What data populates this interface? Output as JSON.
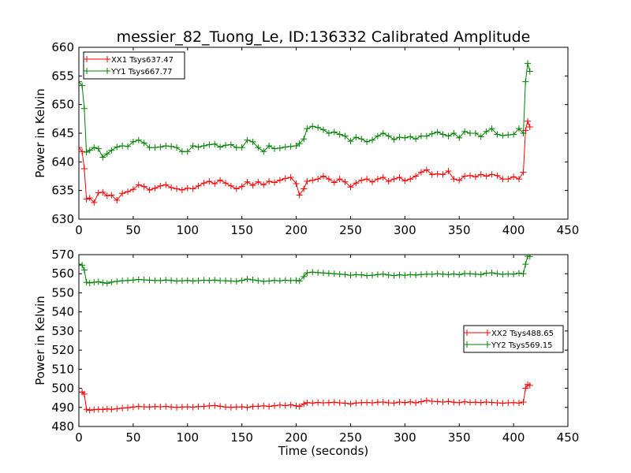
{
  "chart_data": [
    {
      "type": "line",
      "title": "messier_82_Tuong_Le, ID:136332 Calibrated Amplitude",
      "xlabel": "",
      "ylabel": "Power in Kelvin",
      "xlim": [
        0,
        450
      ],
      "ylim": [
        630,
        660
      ],
      "xticks": [
        "0",
        "50",
        "100",
        "150",
        "200",
        "250",
        "300",
        "350",
        "400",
        "450"
      ],
      "yticks": [
        "630",
        "635",
        "640",
        "645",
        "650",
        "655",
        "660"
      ],
      "grid": false,
      "legend_position": "upper-left",
      "marker": "+",
      "series": [
        {
          "name": "XX1 Tsys637.47",
          "color": "#ff0000",
          "x": [
            0,
            3,
            5,
            7,
            10,
            14,
            18,
            22,
            26,
            30,
            35,
            40,
            45,
            50,
            55,
            60,
            65,
            70,
            75,
            80,
            85,
            90,
            95,
            100,
            105,
            110,
            115,
            120,
            125,
            130,
            135,
            140,
            145,
            150,
            155,
            160,
            165,
            170,
            175,
            180,
            185,
            190,
            195,
            200,
            203,
            207,
            210,
            215,
            220,
            225,
            230,
            235,
            240,
            245,
            250,
            255,
            260,
            265,
            270,
            275,
            280,
            285,
            290,
            295,
            300,
            305,
            310,
            315,
            320,
            325,
            330,
            335,
            340,
            345,
            350,
            355,
            360,
            365,
            370,
            375,
            380,
            385,
            390,
            395,
            400,
            405,
            409,
            411,
            413,
            415
          ],
          "values": [
            642.5,
            641.8,
            638.8,
            633.5,
            633.7,
            632.9,
            634.6,
            634.7,
            634.1,
            634.2,
            633.3,
            634.5,
            634.8,
            635.2,
            636.0,
            635.7,
            635.1,
            635.4,
            635.8,
            636.0,
            635.5,
            635.3,
            635.1,
            635.4,
            635.3,
            635.8,
            636.3,
            636.6,
            636.2,
            636.8,
            636.3,
            635.8,
            635.3,
            635.7,
            636.5,
            635.9,
            636.5,
            636.0,
            636.6,
            636.4,
            636.8,
            637.1,
            637.3,
            636.2,
            634.2,
            635.3,
            636.6,
            636.8,
            637.0,
            637.5,
            637.0,
            636.4,
            637.0,
            636.5,
            635.6,
            636.3,
            636.8,
            637.0,
            636.5,
            637.0,
            637.3,
            636.6,
            637.0,
            637.3,
            636.7,
            637.0,
            637.5,
            638.2,
            638.6,
            637.8,
            637.9,
            637.8,
            638.4,
            637.0,
            636.8,
            637.5,
            637.6,
            637.4,
            637.8,
            637.5,
            637.8,
            637.6,
            637.0,
            637.0,
            637.4,
            637.0,
            638.2,
            645.5,
            647.1,
            646.1
          ]
        },
        {
          "name": "YY1 Tsys667.77",
          "color": "#008000",
          "x": [
            0,
            3,
            5,
            7,
            10,
            14,
            18,
            22,
            26,
            30,
            35,
            40,
            45,
            50,
            55,
            60,
            65,
            70,
            75,
            80,
            85,
            90,
            95,
            100,
            105,
            110,
            115,
            120,
            125,
            130,
            135,
            140,
            145,
            150,
            155,
            160,
            165,
            170,
            175,
            180,
            185,
            190,
            195,
            200,
            203,
            207,
            210,
            215,
            220,
            225,
            230,
            235,
            240,
            245,
            250,
            255,
            260,
            265,
            270,
            275,
            280,
            285,
            290,
            295,
            300,
            305,
            310,
            315,
            320,
            325,
            330,
            335,
            340,
            345,
            350,
            355,
            360,
            365,
            370,
            375,
            380,
            385,
            390,
            395,
            400,
            405,
            409,
            411,
            413,
            415
          ],
          "values": [
            654.0,
            653.3,
            649.3,
            641.7,
            642.0,
            642.5,
            642.3,
            640.8,
            641.4,
            642.0,
            642.6,
            642.8,
            642.7,
            643.5,
            643.8,
            643.3,
            642.5,
            642.5,
            642.6,
            642.8,
            642.7,
            642.5,
            641.8,
            641.8,
            642.8,
            642.6,
            642.8,
            643.0,
            643.1,
            642.6,
            642.9,
            643.0,
            642.5,
            642.5,
            643.8,
            643.5,
            642.5,
            641.8,
            642.8,
            642.3,
            642.4,
            642.6,
            642.7,
            642.8,
            643.2,
            644.0,
            645.8,
            646.2,
            646.0,
            645.6,
            645.0,
            645.2,
            644.8,
            644.5,
            643.6,
            644.3,
            644.0,
            643.5,
            643.8,
            644.5,
            645.0,
            644.5,
            643.9,
            644.3,
            644.2,
            644.4,
            644.0,
            644.5,
            644.5,
            644.9,
            645.2,
            644.8,
            644.5,
            645.0,
            644.2,
            645.3,
            645.0,
            645.0,
            644.4,
            645.3,
            645.8,
            644.8,
            644.6,
            644.7,
            644.8,
            645.8,
            645.0,
            654.0,
            657.2,
            655.8
          ]
        }
      ]
    },
    {
      "type": "line",
      "title": "",
      "xlabel": "Time (seconds)",
      "ylabel": "Power in Kelvin",
      "xlim": [
        0,
        450
      ],
      "ylim": [
        480,
        570
      ],
      "xticks": [
        "0",
        "50",
        "100",
        "150",
        "200",
        "250",
        "300",
        "350",
        "400",
        "450"
      ],
      "yticks": [
        "480",
        "490",
        "500",
        "510",
        "520",
        "530",
        "540",
        "550",
        "560",
        "570"
      ],
      "grid": false,
      "legend_position": "center-right",
      "marker": "+",
      "series": [
        {
          "name": "XX2 Tsys488.65",
          "color": "#ff0000",
          "x": [
            0,
            3,
            5,
            7,
            10,
            14,
            18,
            22,
            26,
            30,
            35,
            40,
            45,
            50,
            55,
            60,
            65,
            70,
            75,
            80,
            85,
            90,
            95,
            100,
            105,
            110,
            115,
            120,
            125,
            130,
            135,
            140,
            145,
            150,
            155,
            160,
            165,
            170,
            175,
            180,
            185,
            190,
            195,
            200,
            203,
            207,
            210,
            215,
            220,
            225,
            230,
            235,
            240,
            245,
            250,
            255,
            260,
            265,
            270,
            275,
            280,
            285,
            290,
            295,
            300,
            305,
            310,
            315,
            320,
            325,
            330,
            335,
            340,
            345,
            350,
            355,
            360,
            365,
            370,
            375,
            380,
            385,
            390,
            395,
            400,
            405,
            409,
            411,
            413,
            415
          ],
          "values": [
            498.0,
            498.0,
            497.0,
            489.0,
            488.5,
            488.8,
            489.0,
            488.9,
            489.2,
            489.0,
            489.3,
            489.6,
            489.8,
            490.2,
            490.5,
            490.3,
            490.2,
            490.4,
            490.3,
            490.5,
            490.2,
            490.0,
            490.2,
            490.3,
            490.1,
            490.4,
            490.5,
            490.8,
            491.0,
            490.6,
            490.2,
            490.0,
            490.2,
            490.3,
            490.0,
            490.5,
            490.6,
            490.8,
            490.5,
            490.9,
            491.2,
            491.0,
            491.3,
            490.8,
            490.5,
            491.8,
            492.5,
            492.3,
            492.6,
            492.4,
            492.5,
            492.7,
            492.4,
            492.2,
            491.8,
            492.3,
            492.5,
            492.6,
            492.4,
            492.7,
            492.8,
            492.4,
            492.3,
            492.8,
            492.5,
            492.9,
            492.4,
            493.0,
            493.6,
            493.2,
            493.0,
            492.8,
            493.1,
            492.7,
            492.5,
            492.9,
            492.6,
            492.7,
            492.5,
            492.8,
            492.6,
            492.4,
            492.2,
            492.4,
            492.5,
            492.3,
            492.8,
            500.0,
            502.0,
            501.5
          ]
        },
        {
          "name": "YY2 Tsys569.15",
          "color": "#008000",
          "x": [
            0,
            3,
            5,
            7,
            10,
            14,
            18,
            22,
            26,
            30,
            35,
            40,
            45,
            50,
            55,
            60,
            65,
            70,
            75,
            80,
            85,
            90,
            95,
            100,
            105,
            110,
            115,
            120,
            125,
            130,
            135,
            140,
            145,
            150,
            155,
            160,
            165,
            170,
            175,
            180,
            185,
            190,
            195,
            200,
            203,
            207,
            210,
            215,
            220,
            225,
            230,
            235,
            240,
            245,
            250,
            255,
            260,
            265,
            270,
            275,
            280,
            285,
            290,
            295,
            300,
            305,
            310,
            315,
            320,
            325,
            330,
            335,
            340,
            345,
            350,
            355,
            360,
            365,
            370,
            375,
            380,
            385,
            390,
            395,
            400,
            405,
            409,
            411,
            413,
            415
          ],
          "values": [
            565.0,
            564.5,
            562.0,
            555.5,
            555.2,
            555.5,
            555.8,
            555.3,
            555.0,
            555.6,
            556.0,
            556.3,
            556.5,
            556.7,
            557.0,
            556.8,
            556.6,
            556.5,
            556.4,
            556.7,
            556.5,
            556.2,
            556.3,
            556.5,
            556.2,
            556.4,
            556.6,
            556.5,
            556.7,
            556.4,
            556.3,
            556.2,
            556.0,
            556.5,
            557.2,
            556.8,
            556.4,
            556.0,
            556.2,
            556.5,
            556.3,
            556.6,
            556.4,
            556.5,
            556.2,
            558.5,
            560.5,
            560.8,
            560.6,
            560.4,
            560.2,
            560.0,
            559.8,
            559.6,
            559.2,
            559.5,
            559.4,
            559.0,
            559.2,
            559.6,
            559.8,
            559.3,
            559.0,
            559.4,
            559.2,
            559.5,
            559.3,
            559.6,
            559.8,
            559.7,
            560.0,
            559.8,
            559.6,
            559.9,
            559.5,
            560.1,
            560.0,
            559.8,
            559.6,
            560.3,
            560.5,
            560.0,
            559.7,
            559.9,
            559.8,
            560.3,
            560.0,
            565.0,
            569.2,
            569.0
          ]
        }
      ]
    }
  ]
}
